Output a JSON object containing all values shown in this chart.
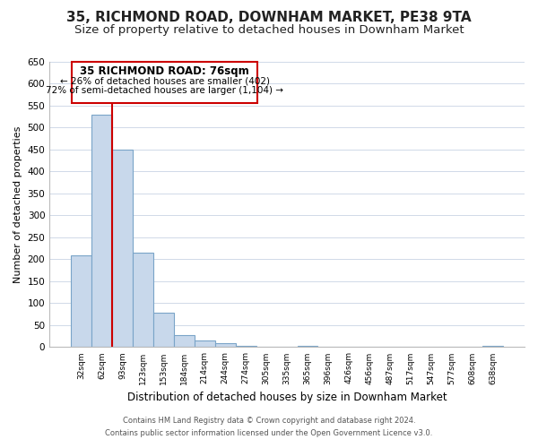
{
  "title": "35, RICHMOND ROAD, DOWNHAM MARKET, PE38 9TA",
  "subtitle": "Size of property relative to detached houses in Downham Market",
  "xlabel": "Distribution of detached houses by size in Downham Market",
  "ylabel": "Number of detached properties",
  "bar_labels": [
    "32sqm",
    "62sqm",
    "93sqm",
    "123sqm",
    "153sqm",
    "184sqm",
    "214sqm",
    "244sqm",
    "274sqm",
    "305sqm",
    "335sqm",
    "365sqm",
    "396sqm",
    "426sqm",
    "456sqm",
    "487sqm",
    "517sqm",
    "547sqm",
    "577sqm",
    "608sqm",
    "638sqm"
  ],
  "bar_values": [
    210,
    530,
    450,
    215,
    78,
    28,
    15,
    10,
    2,
    0,
    0,
    2,
    0,
    0,
    0,
    0,
    1,
    0,
    0,
    1,
    2
  ],
  "bar_color": "#c8d8eb",
  "bar_edge_color": "#7aa4c8",
  "highlight_bar_color": "#cc0000",
  "highlight_line_index": 1,
  "ylim": [
    0,
    650
  ],
  "yticks": [
    0,
    50,
    100,
    150,
    200,
    250,
    300,
    350,
    400,
    450,
    500,
    550,
    600,
    650
  ],
  "annotation_title": "35 RICHMOND ROAD: 76sqm",
  "annotation_line1": "← 26% of detached houses are smaller (402)",
  "annotation_line2": "72% of semi-detached houses are larger (1,104) →",
  "footer_line1": "Contains HM Land Registry data © Crown copyright and database right 2024.",
  "footer_line2": "Contains public sector information licensed under the Open Government Licence v3.0.",
  "background_color": "#ffffff",
  "grid_color": "#d0d9e8",
  "title_fontsize": 11,
  "subtitle_fontsize": 9.5,
  "axis_label_fontsize": 8.5,
  "ylabel_fontsize": 8
}
